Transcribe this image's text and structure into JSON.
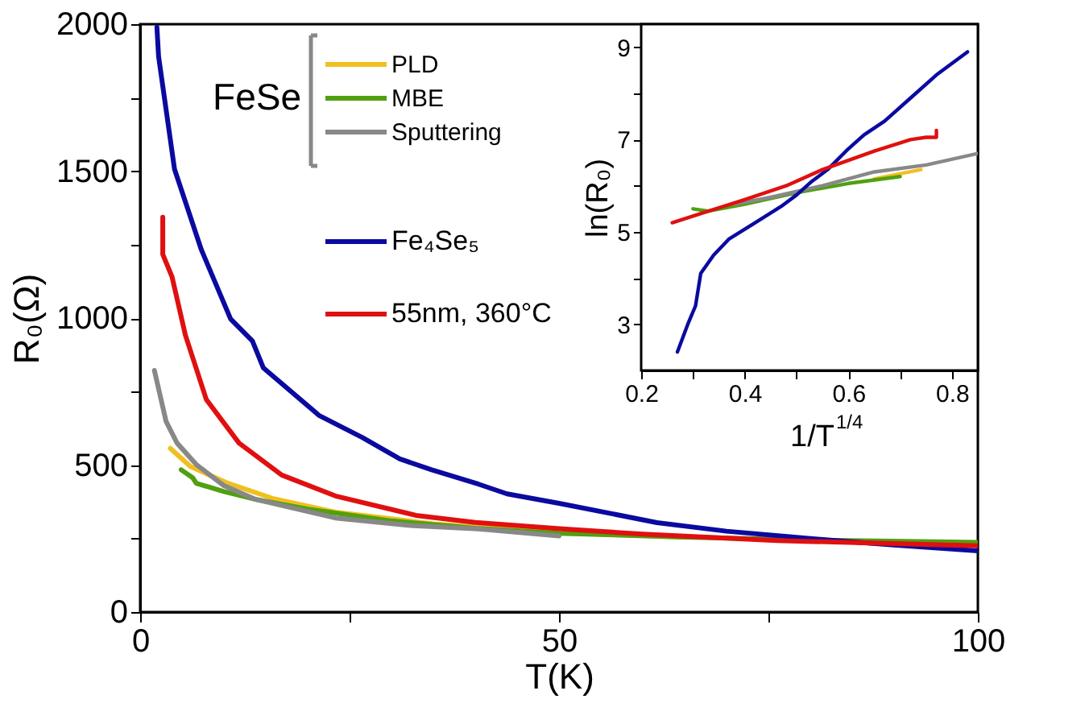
{
  "chart_data": [
    {
      "type": "line",
      "xlabel": "T(K)",
      "ylabel": "R₀(Ω)",
      "legend_title": "FeSe",
      "legend": "top",
      "grid": false,
      "xlim": [
        0,
        100
      ],
      "ylim": [
        0,
        2000
      ],
      "xticks": [
        0,
        {
          "value": 25,
          "label": null
        },
        50,
        {
          "value": 75,
          "label": null
        },
        100
      ],
      "yticks": [
        0,
        {
          "value": 250,
          "label": null
        },
        500,
        {
          "value": 750,
          "label": null
        },
        1000,
        {
          "value": 1250,
          "label": null
        },
        1500,
        {
          "value": 1750,
          "label": null
        },
        2000
      ],
      "series": [
        {
          "name": "PLD",
          "color": "#f0c020",
          "x": [
            3.6,
            6,
            10.5,
            16,
            23.3,
            35,
            50,
            65
          ],
          "values": [
            557,
            495,
            438,
            385,
            340,
            300,
            270,
            255
          ]
        },
        {
          "name": "MBE",
          "color": "#50a010",
          "x": [
            4.9,
            6.3,
            6.7,
            10,
            13.7,
            20,
            30,
            40,
            50,
            65,
            80,
            100
          ],
          "values": [
            484,
            456,
            438,
            410,
            384,
            350,
            310,
            285,
            268,
            255,
            245,
            237
          ]
        },
        {
          "name": "Sputtering",
          "color": "#888888",
          "x": [
            1.7,
            3.1,
            4.4,
            6.7,
            10,
            13.7,
            23.3,
            32,
            40.4,
            50
          ],
          "values": [
            822,
            648,
            575,
            502,
            430,
            384,
            320,
            295,
            283,
            259
          ]
        },
        {
          "name": "Fe₄Se₅",
          "color": "#0a0aa0",
          "x": [
            2.0,
            2.2,
            4.1,
            7.3,
            10.8,
            13.4,
            14.7,
            21.4,
            26.5,
            31,
            34.8,
            40.4,
            43.8,
            50,
            61.7,
            70,
            83,
            90,
            100
          ],
          "values": [
            1990,
            1890,
            1507,
            1233,
            997,
            922,
            831,
            668,
            594,
            521,
            484,
            435,
            402,
            370,
            304,
            275,
            243,
            228,
            208
          ]
        },
        {
          "name": "55nm, 360°C",
          "color": "#e01010",
          "x": [
            2.7,
            2.7,
            3.8,
            5.4,
            7.9,
            11.8,
            16.9,
            23.3,
            32.9,
            40,
            50.4,
            60,
            76,
            90,
            100
          ],
          "values": [
            1343,
            1217,
            1141,
            942,
            723,
            575,
            466,
            395,
            329,
            305,
            283,
            265,
            243,
            233,
            225
          ]
        }
      ]
    },
    {
      "type": "line",
      "xlabel": "1/T$^{1/4}$",
      "ylabel": "ln(R₀)",
      "grid": false,
      "xlim": [
        0.2,
        0.85
      ],
      "ylim": [
        2,
        9.5
      ],
      "xticks": [
        0.2,
        {
          "value": 0.3,
          "label": null
        },
        0.4,
        {
          "value": 0.5,
          "label": null
        },
        0.6,
        {
          "value": 0.7,
          "label": null
        },
        0.8
      ],
      "yticks": [
        3,
        {
          "value": 4,
          "label": null
        },
        5,
        {
          "value": 6,
          "label": null
        },
        7,
        {
          "value": 8,
          "label": null
        },
        9
      ],
      "series": [
        {
          "color": "#f0c020",
          "x": [
            0.65,
            0.74
          ],
          "values": [
            6.15,
            6.35
          ]
        },
        {
          "color": "#50a010",
          "x": [
            0.3,
            0.33,
            0.4,
            0.5,
            0.6,
            0.7
          ],
          "values": [
            5.5,
            5.45,
            5.6,
            5.85,
            6.05,
            6.2
          ]
        },
        {
          "color": "#888888",
          "x": [
            0.38,
            0.45,
            0.55,
            0.65,
            0.75,
            0.85
          ],
          "values": [
            5.6,
            5.75,
            6.0,
            6.3,
            6.45,
            6.7
          ]
        },
        {
          "color": "#0a0aa0",
          "x": [
            0.27,
            0.29,
            0.305,
            0.315,
            0.34,
            0.37,
            0.42,
            0.47,
            0.5,
            0.53,
            0.56,
            0.6,
            0.63,
            0.67,
            0.72,
            0.77,
            0.83
          ],
          "values": [
            2.4,
            3.0,
            3.4,
            4.1,
            4.5,
            4.85,
            5.2,
            5.55,
            5.8,
            6.1,
            6.35,
            6.8,
            7.1,
            7.4,
            7.9,
            8.4,
            8.9
          ]
        },
        {
          "color": "#e01010",
          "x": [
            0.26,
            0.33,
            0.4,
            0.48,
            0.55,
            0.65,
            0.72,
            0.75,
            0.77,
            0.77
          ],
          "values": [
            5.2,
            5.45,
            5.7,
            6.0,
            6.35,
            6.75,
            7.0,
            7.05,
            7.05,
            7.2
          ]
        }
      ]
    }
  ]
}
